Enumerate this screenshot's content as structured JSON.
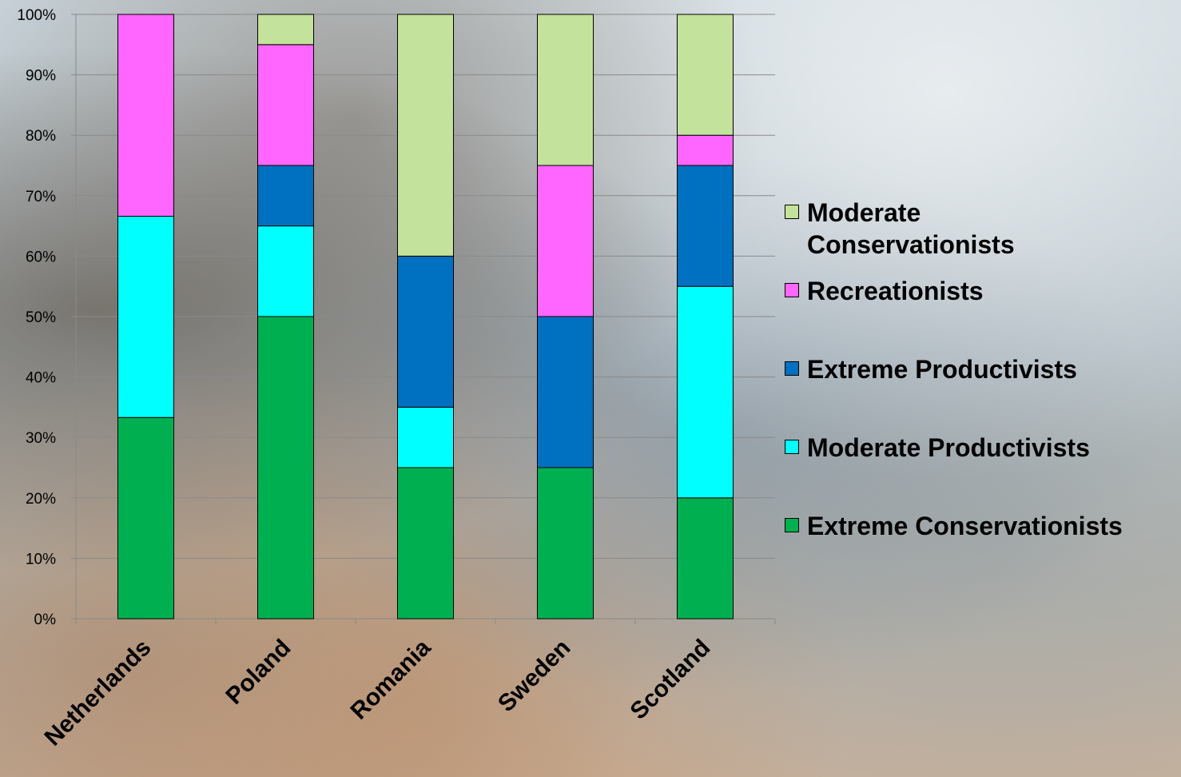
{
  "chart_data": {
    "type": "bar",
    "stacked": true,
    "percent": true,
    "title": "",
    "xlabel": "",
    "ylabel": "",
    "ylim": [
      0,
      100
    ],
    "yticks": [
      "0%",
      "10%",
      "20%",
      "30%",
      "40%",
      "50%",
      "60%",
      "70%",
      "80%",
      "90%",
      "100%"
    ],
    "grid": true,
    "legend_position": "right",
    "categories": [
      "Netherlands",
      "Poland",
      "Romania",
      "Sweden",
      "Scotland"
    ],
    "series": [
      {
        "name": "Extreme Conservationists",
        "color": "#00b050",
        "values": [
          33.3,
          50,
          25,
          25,
          20
        ]
      },
      {
        "name": "Moderate Productivists",
        "color": "#00ffff",
        "values": [
          33.3,
          15,
          10,
          0,
          35
        ]
      },
      {
        "name": "Extreme Productivists",
        "color": "#0070c0",
        "values": [
          0,
          10,
          25,
          25,
          20
        ]
      },
      {
        "name": "Recreationists",
        "color": "#ff66ff",
        "values": [
          33.4,
          20,
          0,
          25,
          5
        ]
      },
      {
        "name": "Moderate Conservationists",
        "color": "#c3e29b",
        "values": [
          0,
          5,
          40,
          25,
          20
        ]
      }
    ],
    "legend": [
      {
        "label": "Moderate Conservationists",
        "color": "#c3e29b"
      },
      {
        "label": "Recreationists",
        "color": "#ff66ff"
      },
      {
        "label": "Extreme Productivists",
        "color": "#0070c0"
      },
      {
        "label": "Moderate Productivists",
        "color": "#00ffff"
      },
      {
        "label": "Extreme Conservationists",
        "color": "#00b050"
      }
    ]
  }
}
